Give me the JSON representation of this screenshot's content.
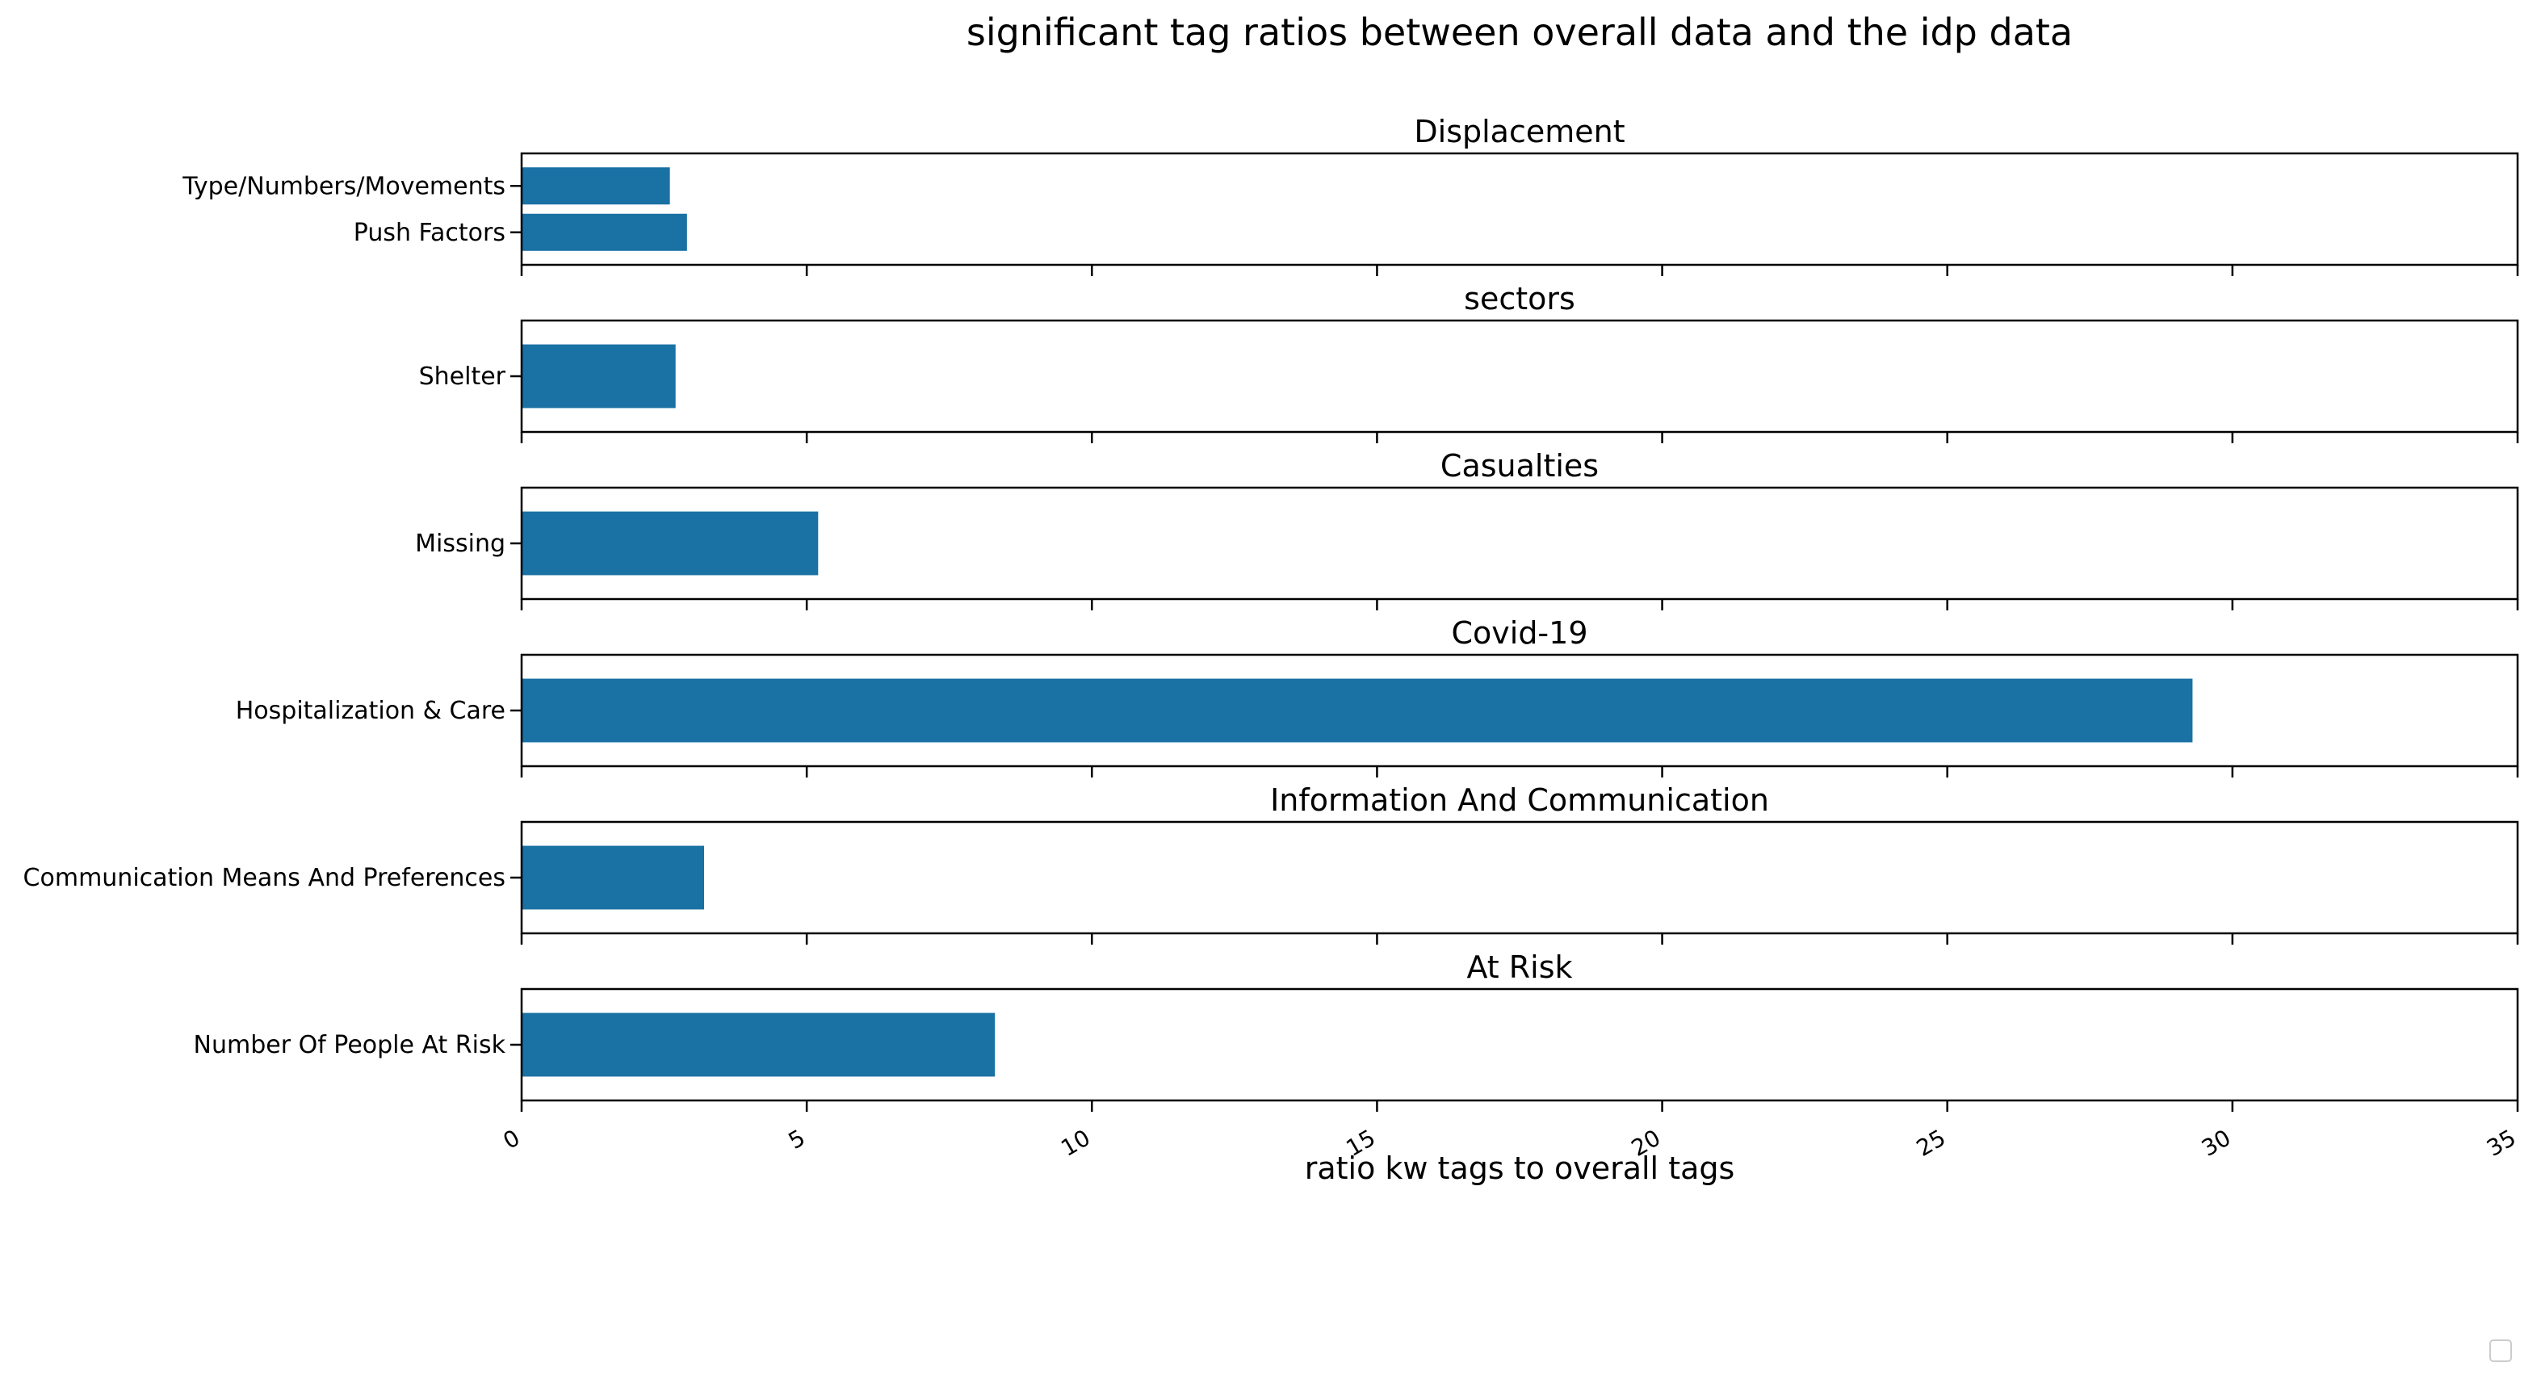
{
  "chart_data": {
    "type": "bar",
    "orientation": "horizontal",
    "title": "significant tag ratios between overall data and the idp data",
    "xlabel": "ratio kw tags to overall tags",
    "xlim": [
      0,
      35
    ],
    "xticks": [
      0,
      5,
      10,
      15,
      20,
      25,
      30,
      35
    ],
    "xtick_labels": [
      "0",
      "5",
      "10",
      "15",
      "20",
      "25",
      "30",
      "35"
    ],
    "bar_color": "#1a71a3",
    "grid": false,
    "legend": "empty, bottom-right",
    "panels": [
      {
        "title": "Displacement",
        "categories": [
          "Type/Numbers/Movements",
          "Push Factors"
        ],
        "values": [
          2.6,
          2.9
        ]
      },
      {
        "title": "sectors",
        "categories": [
          "Shelter"
        ],
        "values": [
          2.7
        ]
      },
      {
        "title": "Casualties",
        "categories": [
          "Missing"
        ],
        "values": [
          5.2
        ]
      },
      {
        "title": "Covid-19",
        "categories": [
          "Hospitalization & Care"
        ],
        "values": [
          29.3
        ]
      },
      {
        "title": "Information And Communication",
        "categories": [
          "Communication Means And Preferences"
        ],
        "values": [
          3.2
        ]
      },
      {
        "title": "At Risk",
        "categories": [
          "Number Of People At Risk"
        ],
        "values": [
          8.3
        ]
      }
    ]
  }
}
